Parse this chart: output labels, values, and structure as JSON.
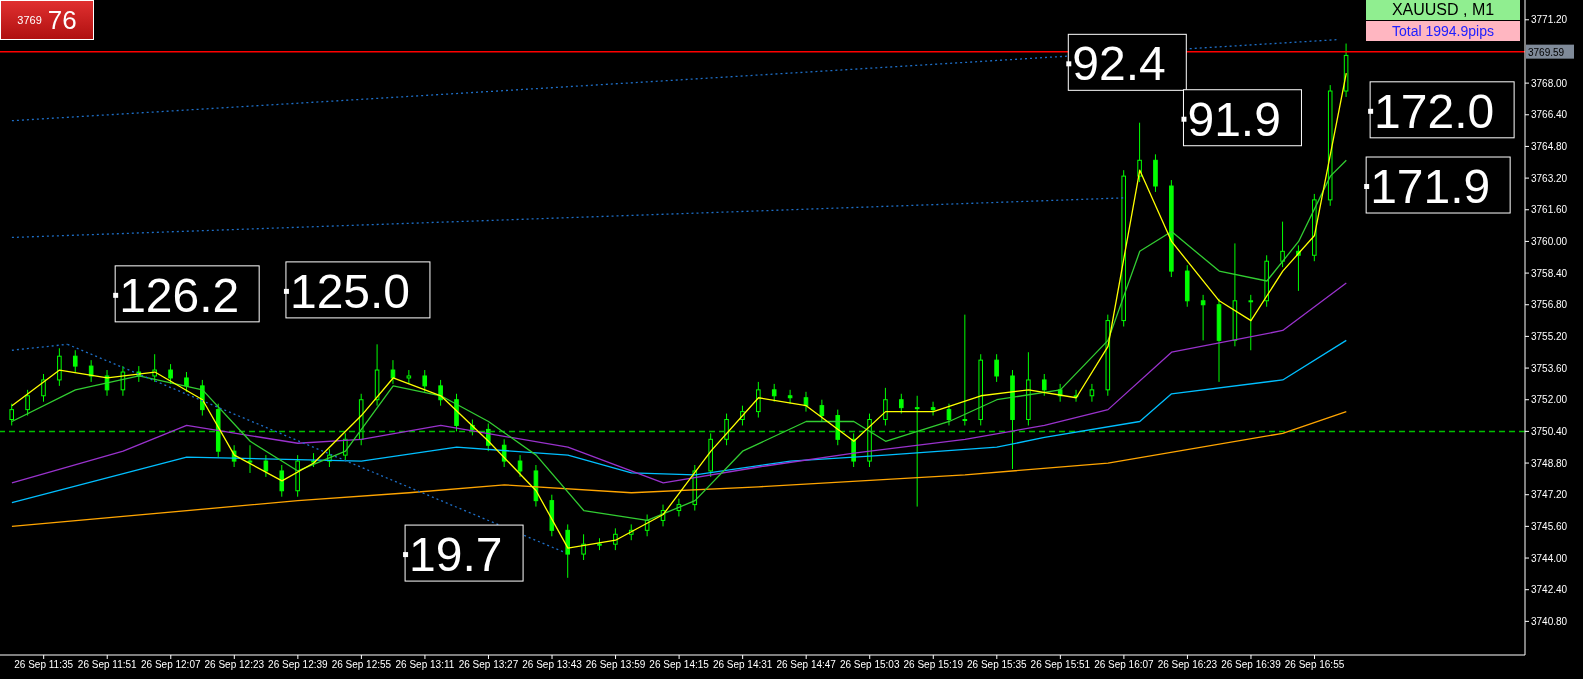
{
  "chart_data": {
    "type": "candlestick",
    "title": "XAUUSD , M1",
    "subtitle": "Total 1994.9pips",
    "color": "#00ff00",
    "x": [
      "--09-26T11:27",
      "--09-26T11:31",
      "--09-26T11:35",
      "--09-26T11:39",
      "--09-26T11:43",
      "--09-26T11:47",
      "--09-26T11:51",
      "--09-26T11:55",
      "--09-26T11:59",
      "--09-26T12:03",
      "--09-26T12:07",
      "--09-26T12:11",
      "--09-26T12:15",
      "--09-26T12:19",
      "--09-26T12:23",
      "--09-26T12:27",
      "--09-26T12:31",
      "--09-26T12:35",
      "--09-26T12:39",
      "--09-26T12:43",
      "--09-26T12:47",
      "--09-26T12:51",
      "--09-26T12:55",
      "--09-26T12:59",
      "--09-26T13:03",
      "--09-26T13:07",
      "--09-26T13:11",
      "--09-26T13:15",
      "--09-26T13:19",
      "--09-26T13:23",
      "--09-26T13:27",
      "--09-26T13:31",
      "--09-26T13:35",
      "--09-26T13:39",
      "--09-26T13:43",
      "--09-26T13:47",
      "--09-26T13:51",
      "--09-26T13:55",
      "--09-26T13:59",
      "--09-26T14:03",
      "--09-26T14:07",
      "--09-26T14:11",
      "--09-26T14:15",
      "--09-26T14:19",
      "--09-26T14:23",
      "--09-26T14:27",
      "--09-26T14:31",
      "--09-26T14:35",
      "--09-26T14:39",
      "--09-26T14:43",
      "--09-26T14:47",
      "--09-26T14:51",
      "--09-26T14:55",
      "--09-26T14:59",
      "--09-26T15:03",
      "--09-26T15:07",
      "--09-26T15:11",
      "--09-26T15:15",
      "--09-26T15:19",
      "--09-26T15:23",
      "--09-26T15:27",
      "--09-26T15:31",
      "--09-26T15:35",
      "--09-26T15:39",
      "--09-26T15:43",
      "--09-26T15:47",
      "--09-26T15:51",
      "--09-26T15:55",
      "--09-26T15:59",
      "--09-26T16:03",
      "--09-26T16:07",
      "--09-26T16:11",
      "--09-26T16:15",
      "--09-26T16:19",
      "--09-26T16:23",
      "--09-26T16:27",
      "--09-26T16:31",
      "--09-26T16:35",
      "--09-26T16:39",
      "--09-26T16:43",
      "--09-26T16:47",
      "--09-26T16:51",
      "--09-26T16:55",
      "--09-26T16:59",
      "--09-26T17:03"
    ],
    "ohlc": [
      [
        3751.0,
        3751.8,
        3750.7,
        3751.5
      ],
      [
        3751.5,
        3752.5,
        3751.2,
        3752.2
      ],
      [
        3752.2,
        3753.3,
        3751.9,
        3753.0
      ],
      [
        3753.0,
        3754.6,
        3752.7,
        3754.2
      ],
      [
        3754.2,
        3754.5,
        3753.4,
        3753.7
      ],
      [
        3753.7,
        3754.0,
        3752.9,
        3753.2
      ],
      [
        3753.2,
        3753.5,
        3752.2,
        3752.5
      ],
      [
        3752.5,
        3753.7,
        3752.2,
        3753.4
      ],
      [
        3753.4,
        3753.7,
        3752.9,
        3753.2
      ],
      [
        3753.2,
        3754.3,
        3752.9,
        3753.5
      ],
      [
        3753.5,
        3753.8,
        3752.8,
        3753.1
      ],
      [
        3753.1,
        3753.4,
        3752.4,
        3752.7
      ],
      [
        3752.7,
        3753.0,
        3751.2,
        3751.5
      ],
      [
        3751.5,
        3751.8,
        3749.1,
        3749.4
      ],
      [
        3749.4,
        3749.7,
        3748.6,
        3748.9
      ],
      [
        3748.9,
        3749.7,
        3748.3,
        3748.9
      ],
      [
        3748.9,
        3749.2,
        3748.1,
        3748.4
      ],
      [
        3748.4,
        3748.7,
        3747.1,
        3747.4
      ],
      [
        3747.4,
        3749.2,
        3747.1,
        3748.9
      ],
      [
        3748.9,
        3749.3,
        3748.6,
        3748.9
      ],
      [
        3748.9,
        3749.5,
        3748.6,
        3749.2
      ],
      [
        3749.2,
        3750.3,
        3748.9,
        3750.0
      ],
      [
        3750.0,
        3752.3,
        3749.7,
        3752.0
      ],
      [
        3752.0,
        3754.8,
        3751.7,
        3753.5
      ],
      [
        3753.5,
        3754.0,
        3752.8,
        3753.1
      ],
      [
        3753.1,
        3753.5,
        3752.8,
        3753.2
      ],
      [
        3753.2,
        3753.5,
        3752.4,
        3752.7
      ],
      [
        3752.7,
        3753.0,
        3751.7,
        3752.0
      ],
      [
        3752.0,
        3752.3,
        3750.4,
        3750.7
      ],
      [
        3750.7,
        3751.0,
        3750.2,
        3750.5
      ],
      [
        3750.5,
        3750.8,
        3749.4,
        3749.7
      ],
      [
        3749.7,
        3750.0,
        3748.6,
        3748.9
      ],
      [
        3748.9,
        3749.2,
        3748.1,
        3748.4
      ],
      [
        3748.4,
        3748.7,
        3746.6,
        3746.9
      ],
      [
        3746.9,
        3747.2,
        3745.1,
        3745.4
      ],
      [
        3745.4,
        3745.7,
        3743.0,
        3744.2
      ],
      [
        3744.2,
        3745.2,
        3743.9,
        3744.7
      ],
      [
        3744.7,
        3745.0,
        3744.4,
        3744.7
      ],
      [
        3744.7,
        3745.5,
        3744.4,
        3745.2
      ],
      [
        3745.2,
        3745.7,
        3744.9,
        3745.4
      ],
      [
        3745.4,
        3746.2,
        3745.1,
        3745.9
      ],
      [
        3745.9,
        3746.7,
        3745.6,
        3746.4
      ],
      [
        3746.4,
        3747.0,
        3746.1,
        3746.7
      ],
      [
        3746.7,
        3748.7,
        3746.4,
        3748.4
      ],
      [
        3748.4,
        3750.3,
        3748.1,
        3750.0
      ],
      [
        3750.0,
        3751.3,
        3749.7,
        3751.0
      ],
      [
        3751.0,
        3751.7,
        3750.7,
        3751.4
      ],
      [
        3751.4,
        3752.9,
        3751.1,
        3752.5
      ],
      [
        3752.5,
        3752.8,
        3751.9,
        3752.2
      ],
      [
        3752.2,
        3752.5,
        3751.8,
        3752.1
      ],
      [
        3752.1,
        3752.4,
        3751.4,
        3751.7
      ],
      [
        3751.7,
        3752.0,
        3750.9,
        3751.2
      ],
      [
        3751.2,
        3751.5,
        3749.7,
        3750.0
      ],
      [
        3750.0,
        3750.3,
        3748.6,
        3748.9
      ],
      [
        3748.9,
        3751.3,
        3748.6,
        3751.0
      ],
      [
        3751.0,
        3752.6,
        3750.7,
        3752.0
      ],
      [
        3752.0,
        3752.3,
        3751.3,
        3751.6
      ],
      [
        3751.6,
        3752.2,
        3746.6,
        3751.6
      ],
      [
        3751.6,
        3751.9,
        3751.2,
        3751.5
      ],
      [
        3751.5,
        3751.8,
        3750.7,
        3751.0
      ],
      [
        3751.0,
        3756.3,
        3750.7,
        3751.0
      ],
      [
        3751.0,
        3754.3,
        3750.7,
        3754.0
      ],
      [
        3754.0,
        3754.3,
        3752.9,
        3753.2
      ],
      [
        3753.2,
        3753.5,
        3748.5,
        3751.0
      ],
      [
        3751.0,
        3754.4,
        3750.7,
        3753.0
      ],
      [
        3753.0,
        3753.3,
        3752.2,
        3752.5
      ],
      [
        3752.5,
        3752.8,
        3751.9,
        3752.2
      ],
      [
        3752.2,
        3752.5,
        3751.9,
        3752.2
      ],
      [
        3752.2,
        3752.8,
        3751.9,
        3752.5
      ],
      [
        3752.5,
        3756.3,
        3752.2,
        3756.0
      ],
      [
        3756.0,
        3763.6,
        3755.7,
        3763.3
      ],
      [
        3763.3,
        3766.0,
        3763.0,
        3764.1
      ],
      [
        3764.1,
        3764.4,
        3762.5,
        3762.8
      ],
      [
        3762.8,
        3763.1,
        3758.2,
        3758.5
      ],
      [
        3758.5,
        3758.8,
        3756.7,
        3757.0
      ],
      [
        3757.0,
        3757.3,
        3755.0,
        3756.8
      ],
      [
        3756.8,
        3757.1,
        3752.9,
        3755.0
      ],
      [
        3755.0,
        3759.9,
        3754.7,
        3757.0
      ],
      [
        3757.0,
        3757.3,
        3754.5,
        3757.0
      ],
      [
        3757.0,
        3759.3,
        3756.7,
        3759.0
      ],
      [
        3759.0,
        3761.0,
        3758.7,
        3759.5
      ],
      [
        3759.5,
        3759.8,
        3757.5,
        3759.3
      ],
      [
        3759.3,
        3762.4,
        3759.0,
        3762.1
      ],
      [
        3762.1,
        3767.9,
        3761.8,
        3767.6
      ],
      [
        3767.6,
        3770.0,
        3767.3,
        3769.4
      ]
    ],
    "series": [
      {
        "type": "line",
        "color": "#ffa500",
        "x": [
          "--09-26T11:27",
          "--09-26T12:39",
          "--09-26T13:07",
          "--09-26T13:31",
          "--09-26T14:03",
          "--09-26T14:35",
          "--09-26T15:27",
          "--09-26T16:03",
          "--09-26T16:47",
          "--09-26T17:03"
        ],
        "values": [
          3745.6,
          3746.9,
          3747.3,
          3747.7,
          3747.3,
          3747.6,
          3748.2,
          3748.8,
          3750.3,
          3751.4
        ]
      },
      {
        "type": "line",
        "color": "#00bfff",
        "x": [
          "--09-26T11:27",
          "--09-26T12:11",
          "--09-26T12:55",
          "--09-26T13:19",
          "--09-26T13:47",
          "--09-26T14:03",
          "--09-26T14:19",
          "--09-26T14:43",
          "--09-26T15:07",
          "--09-26T15:35",
          "--09-26T15:47",
          "--09-26T16:11",
          "--09-26T16:19",
          "--09-26T16:47",
          "--09-26T17:03"
        ],
        "values": [
          3746.8,
          3749.1,
          3748.9,
          3749.6,
          3749.2,
          3748.3,
          3748.2,
          3748.9,
          3749.2,
          3749.6,
          3750.1,
          3750.9,
          3752.3,
          3753.0,
          3755.0
        ]
      },
      {
        "type": "line",
        "color": "#9932cc",
        "x": [
          "--09-26T11:27",
          "--09-26T11:55",
          "--09-26T12:11",
          "--09-26T12:39",
          "--09-26T12:55",
          "--09-26T13:15",
          "--09-26T13:47",
          "--09-26T14:11",
          "--09-26T14:35",
          "--09-26T14:59",
          "--09-26T15:27",
          "--09-26T15:47",
          "--09-26T16:03",
          "--09-26T16:19",
          "--09-26T16:47",
          "--09-26T17:03"
        ],
        "values": [
          3747.8,
          3749.4,
          3750.7,
          3749.8,
          3750.0,
          3750.7,
          3749.6,
          3747.8,
          3748.6,
          3749.3,
          3750.0,
          3750.7,
          3751.5,
          3754.4,
          3755.5,
          3757.9
        ]
      },
      {
        "type": "line",
        "color": "#32cd32",
        "x": [
          "--09-26T11:27",
          "--09-26T11:43",
          "--09-26T11:59",
          "--09-26T12:15",
          "--09-26T12:27",
          "--09-26T12:39",
          "--09-26T12:51",
          "--09-26T13:03",
          "--09-26T13:15",
          "--09-26T13:27",
          "--09-26T13:39",
          "--09-26T13:51",
          "--09-26T14:07",
          "--09-26T14:19",
          "--09-26T14:31",
          "--09-26T14:47",
          "--09-26T14:59",
          "--09-26T15:07",
          "--09-26T15:23",
          "--09-26T15:35",
          "--09-26T15:51",
          "--09-26T16:03",
          "--09-26T16:11",
          "--09-26T16:19",
          "--09-26T16:31",
          "--09-26T16:43",
          "--09-26T16:51",
          "--09-26T16:59",
          "--09-26T17:03"
        ],
        "values": [
          3750.9,
          3752.5,
          3753.2,
          3752.5,
          3749.9,
          3748.4,
          3749.4,
          3752.7,
          3752.2,
          3750.9,
          3749.2,
          3746.4,
          3745.9,
          3746.9,
          3749.4,
          3750.9,
          3750.9,
          3749.9,
          3750.9,
          3752.0,
          3752.5,
          3755.0,
          3759.5,
          3760.5,
          3758.5,
          3758.0,
          3760.0,
          3763.3,
          3764.1
        ]
      },
      {
        "type": "line",
        "color": "#ffff00",
        "x": [
          "--09-26T11:27",
          "--09-26T11:39",
          "--09-26T11:51",
          "--09-26T12:03",
          "--09-26T12:15",
          "--09-26T12:23",
          "--09-26T12:35",
          "--09-26T12:43",
          "--09-26T12:55",
          "--09-26T13:03",
          "--09-26T13:15",
          "--09-26T13:27",
          "--09-26T13:39",
          "--09-26T13:47",
          "--09-26T13:59",
          "--09-26T14:11",
          "--09-26T14:23",
          "--09-26T14:35",
          "--09-26T14:47",
          "--09-26T14:59",
          "--09-26T15:07",
          "--09-26T15:19",
          "--09-26T15:31",
          "--09-26T15:43",
          "--09-26T15:55",
          "--09-26T16:03",
          "--09-26T16:11",
          "--09-26T16:19",
          "--09-26T16:31",
          "--09-26T16:39",
          "--09-26T16:47",
          "--09-26T16:55",
          "--09-26T17:03"
        ],
        "values": [
          3751.7,
          3753.5,
          3753.1,
          3753.4,
          3752.0,
          3749.2,
          3747.9,
          3748.8,
          3751.2,
          3753.1,
          3752.2,
          3749.9,
          3747.4,
          3744.5,
          3744.9,
          3746.2,
          3749.4,
          3752.1,
          3751.7,
          3749.9,
          3751.4,
          3751.4,
          3752.2,
          3752.5,
          3752.1,
          3754.7,
          3763.6,
          3760.0,
          3757.0,
          3756.0,
          3758.5,
          3760.3,
          3768.5
        ]
      },
      {
        "type": "line",
        "color": "#1e6fc8",
        "line_style": "dotted",
        "x": [
          "--09-26T11:27",
          "--09-26T11:41"
        ],
        "values": [
          3754.5,
          3754.8
        ]
      },
      {
        "type": "line",
        "color": "#1e6fc8",
        "line_style": "dotted",
        "x": [
          "--09-26T11:41",
          "--09-26T13:46"
        ],
        "values": [
          3754.8,
          3744.3
        ]
      },
      {
        "type": "line",
        "color": "#1e6fc8",
        "line_style": "dotted",
        "x": [
          "--09-26T11:27",
          "--09-26T17:01"
        ],
        "values": [
          3766.1,
          3770.2
        ]
      },
      {
        "type": "line",
        "color": "#1e6fc8",
        "line_style": "dotted",
        "x": [
          "--09-26T11:27",
          "--09-26T16:07"
        ],
        "values": [
          3760.2,
          3762.2
        ]
      }
    ],
    "ref_lines": [
      {
        "axis": "y",
        "value": 3769.59,
        "label": "3769.59",
        "color": "#ff0000",
        "line_style": "solid"
      },
      {
        "axis": "y",
        "value": 3750.4,
        "color": "#00c000",
        "line_style": "dashed"
      }
    ],
    "annotations": [
      "3769",
      "76",
      {
        "text": "126.2",
        "x": "--09-26T11:53",
        "y": 3757.3
      },
      {
        "text": "125.0",
        "x": "--09-26T12:36",
        "y": 3757.5
      },
      {
        "text": "19.7",
        "x": "--09-26T13:06",
        "y": 3744.2
      },
      {
        "text": "92.4",
        "x": "--09-26T15:53",
        "y": 3769.0
      },
      {
        "text": "91.9",
        "x": "--09-26T16:22",
        "y": 3766.2
      },
      {
        "text": "172.0",
        "x": "--09-26T17:09",
        "y": 3766.6
      },
      {
        "text": "171.9",
        "x": "--09-26T17:08",
        "y": 3762.8
      }
    ],
    "xlim": [
      "--09-26T11:24",
      "--09-26T17:48"
    ],
    "ylim": [
      3739.1,
      3772.2
    ],
    "xticks": [
      {
        "value": "--09-26T11:35",
        "label": "26 Sep 11:35"
      },
      {
        "value": "--09-26T11:51",
        "label": "26 Sep 11:51"
      },
      {
        "value": "--09-26T12:07",
        "label": "26 Sep 12:07"
      },
      {
        "value": "--09-26T12:23",
        "label": "26 Sep 12:23"
      },
      {
        "value": "--09-26T12:39",
        "label": "26 Sep 12:39"
      },
      {
        "value": "--09-26T12:55",
        "label": "26 Sep 12:55"
      },
      {
        "value": "--09-26T13:11",
        "label": "26 Sep 13:11"
      },
      {
        "value": "--09-26T13:27",
        "label": "26 Sep 13:27"
      },
      {
        "value": "--09-26T13:43",
        "label": "26 Sep 13:43"
      },
      {
        "value": "--09-26T13:59",
        "label": "26 Sep 13:59"
      },
      {
        "value": "--09-26T14:15",
        "label": "26 Sep 14:15"
      },
      {
        "value": "--09-26T14:31",
        "label": "26 Sep 14:31"
      },
      {
        "value": "--09-26T14:47",
        "label": "26 Sep 14:47"
      },
      {
        "value": "--09-26T15:03",
        "label": "26 Sep 15:03"
      },
      {
        "value": "--09-26T15:19",
        "label": "26 Sep 15:19"
      },
      {
        "value": "--09-26T15:35",
        "label": "26 Sep 15:35"
      },
      {
        "value": "--09-26T15:51",
        "label": "26 Sep 15:51"
      },
      {
        "value": "--09-26T16:07",
        "label": "26 Sep 16:07"
      },
      {
        "value": "--09-26T16:23",
        "label": "26 Sep 16:23"
      },
      {
        "value": "--09-26T16:39",
        "label": "26 Sep 16:39"
      },
      {
        "value": "--09-26T16:55",
        "label": "26 Sep 16:55"
      }
    ],
    "yticks": [
      {
        "value": 3771.2,
        "label": "3771.20"
      },
      {
        "value": 3768.0,
        "label": "3768.00"
      },
      {
        "value": 3766.4,
        "label": "3766.40"
      },
      {
        "value": 3764.8,
        "label": "3764.80"
      },
      {
        "value": 3763.2,
        "label": "3763.20"
      },
      {
        "value": 3761.6,
        "label": "3761.60"
      },
      {
        "value": 3760.0,
        "label": "3760.00"
      },
      {
        "value": 3758.4,
        "label": "3758.40"
      },
      {
        "value": 3756.8,
        "label": "3756.80"
      },
      {
        "value": 3755.2,
        "label": "3755.20"
      },
      {
        "value": 3753.6,
        "label": "3753.60"
      },
      {
        "value": 3752.0,
        "label": "3752.00"
      },
      {
        "value": 3750.4,
        "label": "3750.40"
      },
      {
        "value": 3748.8,
        "label": "3748.80"
      },
      {
        "value": 3747.2,
        "label": "3747.20"
      },
      {
        "value": 3745.6,
        "label": "3745.60"
      },
      {
        "value": 3744.0,
        "label": "3744.00"
      },
      {
        "value": 3742.4,
        "label": "3742.40"
      },
      {
        "value": 3740.8,
        "label": "3740.80"
      }
    ]
  }
}
